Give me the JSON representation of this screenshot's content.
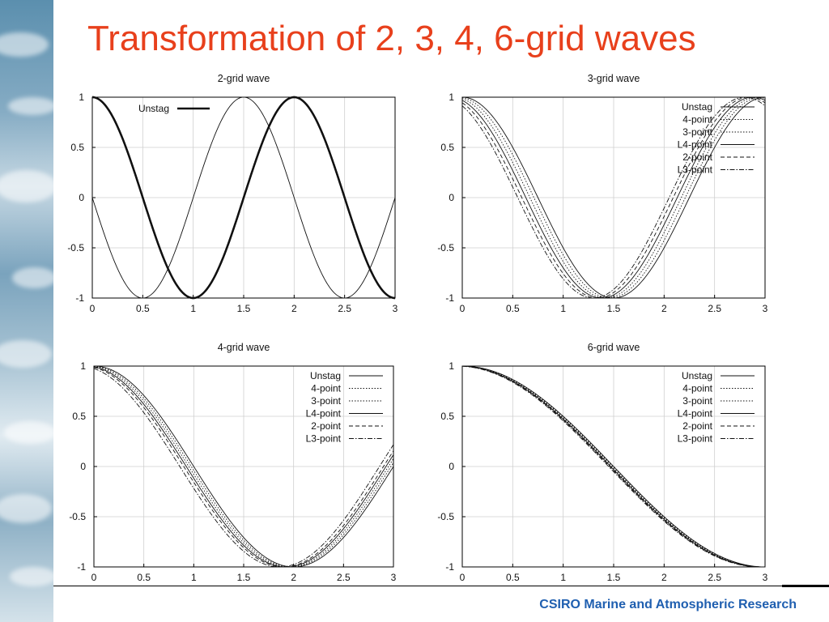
{
  "slide": {
    "title": "Transformation of 2, 3, 4, 6-grid waves",
    "footer": "CSIRO Marine and Atmospheric Research"
  },
  "colors": {
    "title": "#e8401c",
    "footer": "#1f5fb0",
    "curves": "#000000"
  },
  "chart_data": [
    {
      "type": "line",
      "title": "2-grid wave",
      "xlim": [
        0,
        3
      ],
      "ylim": [
        -1,
        1
      ],
      "xticks": [
        0,
        0.5,
        1,
        1.5,
        2,
        2.5,
        3
      ],
      "yticks": [
        1,
        0.5,
        0,
        -0.5,
        -1
      ],
      "grid": true,
      "legend_position": "top-left",
      "series": [
        {
          "name": "Unstag",
          "function": "cos(pi*x)",
          "style": "bold-solid",
          "in_legend": true
        },
        {
          "name": "",
          "function": "-sin(pi*x)",
          "style": "thin-solid",
          "in_legend": false
        },
        {
          "name": "",
          "function": "cos(pi*(x-2))",
          "style": "bold-solid",
          "in_legend": false
        }
      ]
    },
    {
      "type": "line",
      "title": "3-grid wave",
      "xlim": [
        0,
        3
      ],
      "ylim": [
        -1,
        1
      ],
      "xticks": [
        0,
        0.5,
        1,
        1.5,
        2,
        2.5,
        3
      ],
      "yticks": [
        1,
        0.5,
        0,
        -0.5,
        -1
      ],
      "grid": true,
      "legend_position": "top-right",
      "series": [
        {
          "name": "Unstag",
          "function": "cos(2*pi*x/3)",
          "phase_shift": 0.0,
          "style": "solid"
        },
        {
          "name": "4-point",
          "function": "cos(2*pi*(x+s)/3)",
          "phase_shift": 0.04,
          "style": "dotted"
        },
        {
          "name": "3-point",
          "function": "cos(2*pi*(x+s)/3)",
          "phase_shift": 0.08,
          "style": "dotted"
        },
        {
          "name": "L4-point",
          "function": "cos(2*pi*(x+s)/3)",
          "phase_shift": 0.12,
          "style": "solid"
        },
        {
          "name": "2-point",
          "function": "cos(2*pi*(x+s)/3)",
          "phase_shift": 0.16,
          "style": "dashed"
        },
        {
          "name": "L3-point",
          "function": "cos(2*pi*(x+s)/3)",
          "phase_shift": 0.2,
          "style": "dashdot"
        }
      ]
    },
    {
      "type": "line",
      "title": "4-grid wave",
      "xlim": [
        0,
        3
      ],
      "ylim": [
        -1,
        1
      ],
      "xticks": [
        0,
        0.5,
        1,
        1.5,
        2,
        2.5,
        3
      ],
      "yticks": [
        1,
        0.5,
        0,
        -0.5,
        -1
      ],
      "grid": true,
      "legend_position": "top-right",
      "series": [
        {
          "name": "Unstag",
          "function": "cos(pi*x/2)",
          "phase_shift": 0.0,
          "style": "solid"
        },
        {
          "name": "4-point",
          "function": "cos(pi*(x+s)/2)",
          "phase_shift": 0.025,
          "style": "dotted"
        },
        {
          "name": "3-point",
          "function": "cos(pi*(x+s)/2)",
          "phase_shift": 0.05,
          "style": "dotted"
        },
        {
          "name": "L4-point",
          "function": "cos(pi*(x+s)/2)",
          "phase_shift": 0.075,
          "style": "solid"
        },
        {
          "name": "2-point",
          "function": "cos(pi*(x+s)/2)",
          "phase_shift": 0.1,
          "style": "dashed"
        },
        {
          "name": "L3-point",
          "function": "cos(pi*(x+s)/2)",
          "phase_shift": 0.14,
          "style": "dashdot"
        }
      ]
    },
    {
      "type": "line",
      "title": "6-grid wave",
      "xlim": [
        0,
        3
      ],
      "ylim": [
        -1,
        1
      ],
      "xticks": [
        0,
        0.5,
        1,
        1.5,
        2,
        2.5,
        3
      ],
      "yticks": [
        1,
        0.5,
        0,
        -0.5,
        -1
      ],
      "grid": true,
      "legend_position": "top-right",
      "series": [
        {
          "name": "Unstag",
          "function": "cos(pi*x/3)",
          "phase_shift": 0.0,
          "style": "solid"
        },
        {
          "name": "4-point",
          "function": "cos(pi*(x+s)/3)",
          "phase_shift": 0.01,
          "style": "dotted"
        },
        {
          "name": "3-point",
          "function": "cos(pi*(x+s)/3)",
          "phase_shift": 0.02,
          "style": "dotted"
        },
        {
          "name": "L4-point",
          "function": "cos(pi*(x+s)/3)",
          "phase_shift": 0.03,
          "style": "solid"
        },
        {
          "name": "2-point",
          "function": "cos(pi*(x+s)/3)",
          "phase_shift": 0.04,
          "style": "dashed"
        },
        {
          "name": "L3-point",
          "function": "cos(pi*(x+s)/3)",
          "phase_shift": 0.05,
          "style": "dashdot"
        }
      ]
    }
  ]
}
